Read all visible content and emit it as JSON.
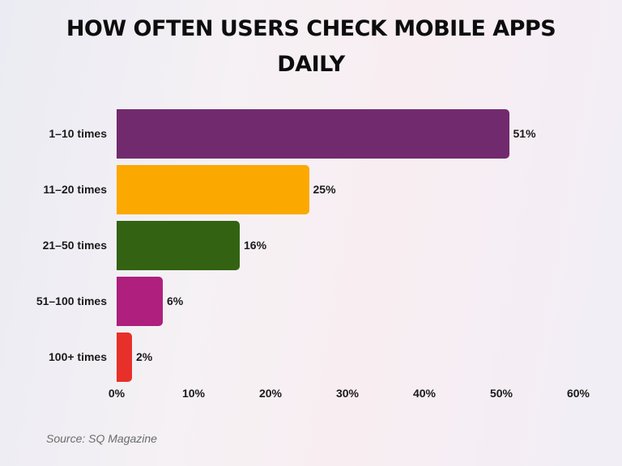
{
  "chart_data": {
    "type": "bar",
    "orientation": "horizontal",
    "title": "HOW OFTEN USERS CHECK MOBILE APPS DAILY",
    "title_lines": [
      "HOW OFTEN USERS CHECK MOBILE APPS",
      "DAILY"
    ],
    "categories": [
      "1–10 times",
      "11–20 times",
      "21–50 times",
      "51–100 times",
      "100+ times"
    ],
    "values": [
      51,
      25,
      16,
      6,
      2
    ],
    "value_labels": [
      "51%",
      "25%",
      "16%",
      "6%",
      "2%"
    ],
    "colors": [
      "#722A6F",
      "#FBA800",
      "#336312",
      "#AE1F7E",
      "#E8302A"
    ],
    "xlabel": "",
    "ylabel": "",
    "xlim": [
      0,
      60
    ],
    "x_ticks": [
      "0%",
      "10%",
      "20%",
      "30%",
      "40%",
      "50%",
      "60%"
    ],
    "grid": false,
    "legend": null,
    "source": "Source: SQ Magazine"
  }
}
